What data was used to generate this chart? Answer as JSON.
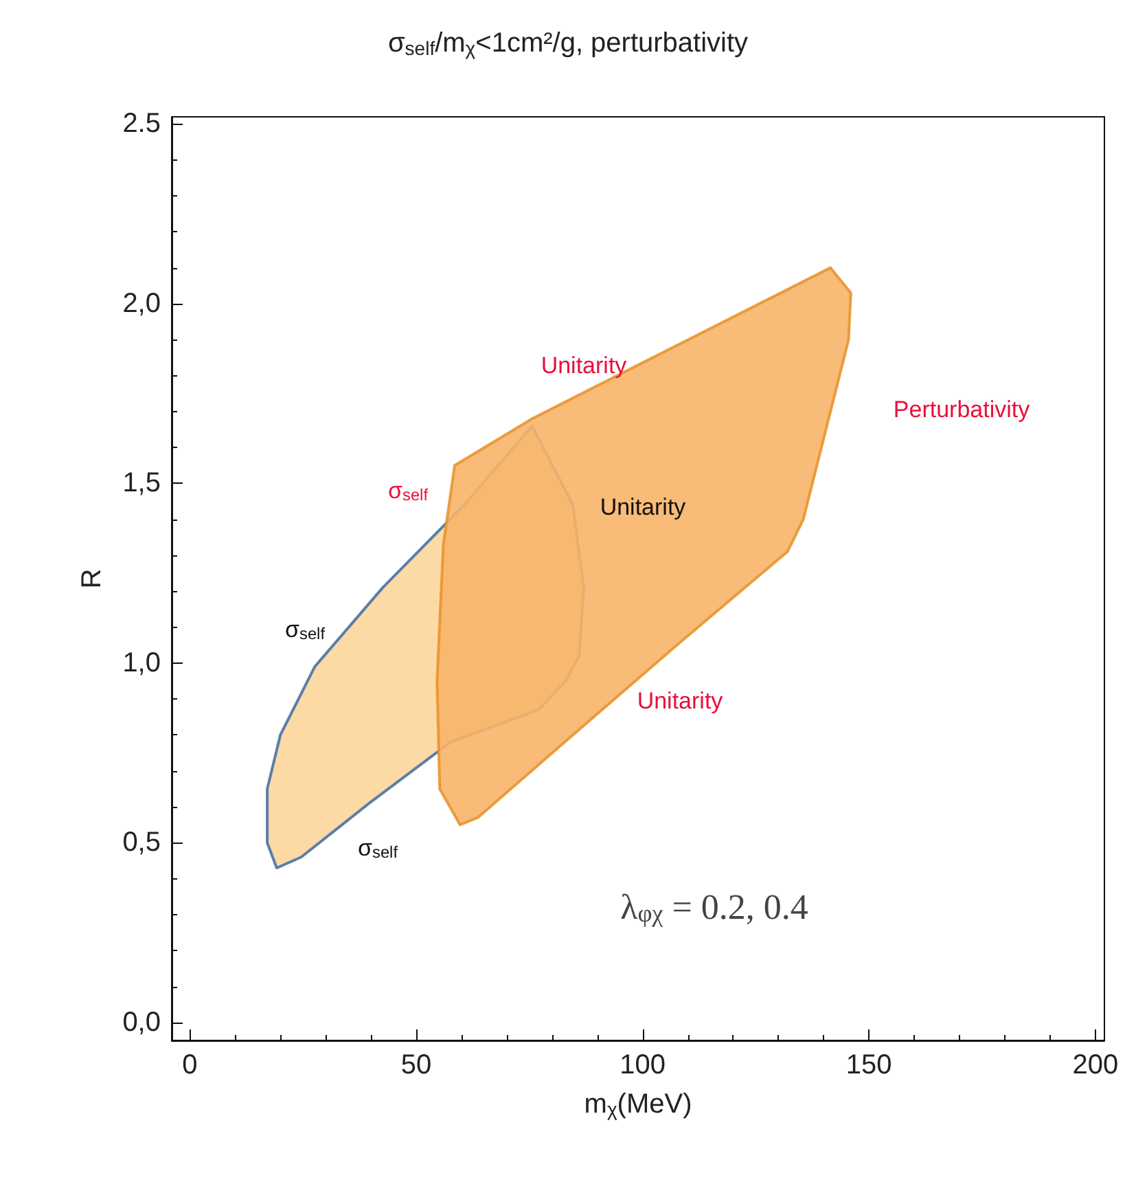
{
  "chart_data": {
    "type": "area",
    "title": "σ$_{self}$/m$_{χ}$<1cm²/g, perturbativity",
    "xlabel": "m$_{χ}$(MeV)",
    "ylabel": "R",
    "xlim": [
      -4,
      202
    ],
    "ylim": [
      -0.05,
      2.52
    ],
    "xticks": [
      0,
      50,
      100,
      150,
      200
    ],
    "yticks": [
      {
        "value": 0,
        "label": "0,0"
      },
      {
        "value": 0.5,
        "label": "0,5"
      },
      {
        "value": 1,
        "label": "1,0"
      },
      {
        "value": 1.5,
        "label": "1,5"
      },
      {
        "value": 2,
        "label": "2,0"
      },
      {
        "value": 2.5,
        "label": "2.5"
      }
    ],
    "grid": false,
    "series": [
      {
        "color": "#fdd9a6",
        "x": [
          75.6,
          84.6,
          87,
          86,
          83,
          77,
          57.6,
          39.6,
          24.6,
          19.2,
          17.1,
          17.1,
          20,
          27.6,
          42.6,
          60.6
        ],
        "values": [
          1.66,
          1.44,
          1.21,
          1.02,
          0.95,
          0.87,
          0.78,
          0.61,
          0.46,
          0.43,
          0.5,
          0.65,
          0.8,
          0.99,
          1.21,
          1.44
        ]
      },
      {
        "color": "#f7b469",
        "x": [
          58.5,
          75.6,
          108.5,
          141.5,
          146,
          145.5,
          141.5,
          135.5,
          132,
          108.5,
          84.6,
          63.6,
          59.7,
          55.2,
          54.6,
          56
        ],
        "values": [
          1.55,
          1.68,
          1.89,
          2.1,
          2.03,
          1.9,
          1.7,
          1.4,
          1.31,
          1.06,
          0.8,
          0.57,
          0.55,
          0.65,
          0.95,
          1.33
        ]
      }
    ],
    "annotations": [
      "Unitarity",
      "Perturbativity",
      "σ$_{self}$",
      "Unitarity",
      "σ$_{self}$",
      "Unitarity",
      "σ$_{self}$",
      "λ$_{φχ}$ = 0.2, 0.4"
    ]
  }
}
